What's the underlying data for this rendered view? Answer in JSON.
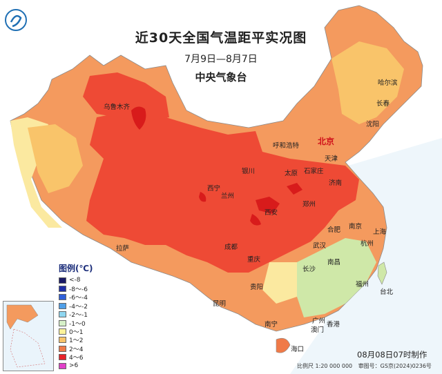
{
  "title": "近30天全国气温距平实况图",
  "date_range": "7月9日—8月7日",
  "agency": "中央气象台",
  "issued": "08月08日07时制作",
  "scale": "比例尺 1:20 000 000",
  "map_approval": "审图号：GS京(2024)0236号",
  "legend": {
    "title": "图例(℃)",
    "items": [
      {
        "label": "<-8",
        "color": "#1a1a66"
      },
      {
        "label": "-8～-6",
        "color": "#1f2fa8"
      },
      {
        "label": "-6～-4",
        "color": "#2f5fd9"
      },
      {
        "label": "-4～-2",
        "color": "#4f9fe8"
      },
      {
        "label": "-2～-1",
        "color": "#8fd6f0"
      },
      {
        "label": "-1～0",
        "color": "#d6f0c8"
      },
      {
        "label": "0～1",
        "color": "#fbf29a"
      },
      {
        "label": "1～2",
        "color": "#f9c46a"
      },
      {
        "label": "2～4",
        "color": "#f07a48"
      },
      {
        "label": "4～6",
        "color": "#e8232a"
      },
      {
        "label": ">6",
        "color": "#e040c8"
      }
    ]
  },
  "cities": [
    {
      "name": "哈尔滨"
    },
    {
      "name": "长春"
    },
    {
      "name": "沈阳"
    },
    {
      "name": "乌鲁木齐"
    },
    {
      "name": "呼和浩特"
    },
    {
      "name": "北京",
      "capital": true
    },
    {
      "name": "天津"
    },
    {
      "name": "银川"
    },
    {
      "name": "太原"
    },
    {
      "name": "石家庄"
    },
    {
      "name": "西宁"
    },
    {
      "name": "兰州"
    },
    {
      "name": "济南"
    },
    {
      "name": "郑州"
    },
    {
      "name": "西安"
    },
    {
      "name": "南京"
    },
    {
      "name": "合肥"
    },
    {
      "name": "上海"
    },
    {
      "name": "拉萨"
    },
    {
      "name": "成都"
    },
    {
      "name": "武汉"
    },
    {
      "name": "杭州"
    },
    {
      "name": "重庆"
    },
    {
      "name": "长沙"
    },
    {
      "name": "南昌"
    },
    {
      "name": "贵阳"
    },
    {
      "name": "福州"
    },
    {
      "name": "台北"
    },
    {
      "name": "昆明"
    },
    {
      "name": "南宁"
    },
    {
      "name": "广州"
    },
    {
      "name": "香港"
    },
    {
      "name": "澳门"
    },
    {
      "name": "海口"
    }
  ]
}
